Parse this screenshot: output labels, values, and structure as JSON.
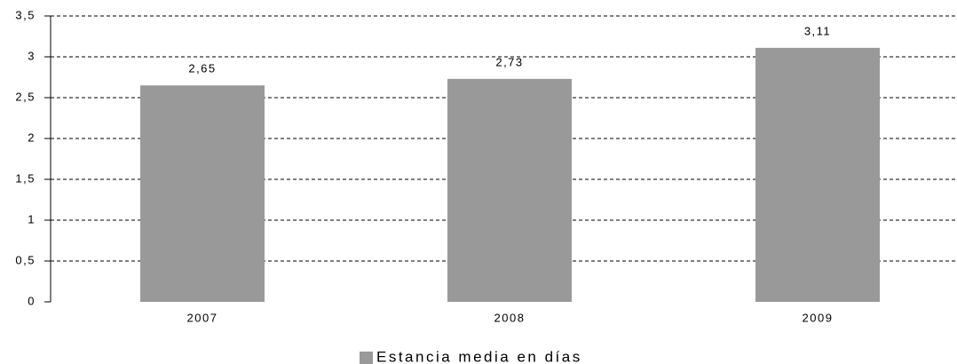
{
  "chart_data": {
    "type": "bar",
    "categories": [
      "2007",
      "2008",
      "2009"
    ],
    "series": [
      {
        "name": "Estancia media en días",
        "color": "#999999",
        "values": [
          2.65,
          2.73,
          3.11
        ],
        "value_labels": [
          "2,65",
          "2,73",
          "3,11"
        ]
      }
    ],
    "ylim": [
      0,
      3.5
    ],
    "yticks": [
      0,
      {
        "value": 0.5,
        "label": "0,5"
      },
      1,
      {
        "value": 1.5,
        "label": "1,5"
      },
      2,
      {
        "value": 2.5,
        "label": "2,5"
      },
      3,
      {
        "value": 3.5,
        "label": "3,5"
      }
    ],
    "grid": true,
    "legend": "bottom"
  }
}
